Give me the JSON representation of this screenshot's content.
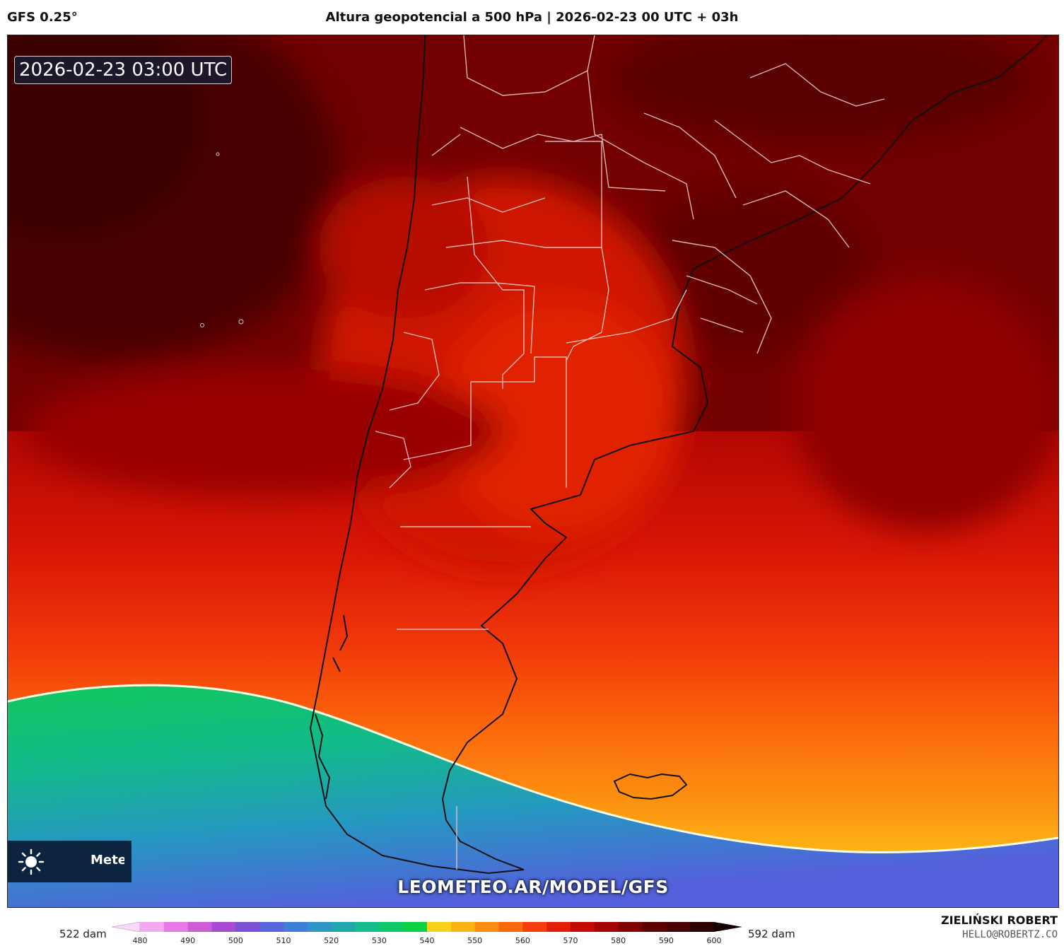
{
  "header": {
    "model": "GFS 0.25°",
    "title": "Altura geopotencial a 500 hPa | 2026-02-23 00 UTC + 03h"
  },
  "map": {
    "valid_time": "2026-02-23 03:00 UTC",
    "logo_text": "Meteo",
    "watermark": "LEOMETEO.AR/MODEL/GFS",
    "highlight_contour_dam": 552
  },
  "colorbar": {
    "min_label": "522 dam",
    "max_label": "592 dam",
    "ticks": [
      "480",
      "490",
      "500",
      "510",
      "520",
      "530",
      "540",
      "550",
      "560",
      "570",
      "580",
      "590",
      "600"
    ],
    "colors": [
      "#fdd7fb",
      "#f2a9ef",
      "#e87ae6",
      "#cc5dd6",
      "#a64bd2",
      "#7b4fd6",
      "#5966dd",
      "#3f7fd8",
      "#2e95c6",
      "#1fa9ac",
      "#15bc8c",
      "#0fca69",
      "#0ed246",
      "#f7d21a",
      "#fbb314",
      "#fc8d10",
      "#fb670c",
      "#f43d0a",
      "#e41f07",
      "#c40a04",
      "#a30403",
      "#7f0101",
      "#5f0000",
      "#460000",
      "#2e0000",
      "#150000"
    ]
  },
  "footer": {
    "author": "ZIELIŃSKI ROBERT",
    "email": "HELLO@ROBERTZ.CO"
  }
}
